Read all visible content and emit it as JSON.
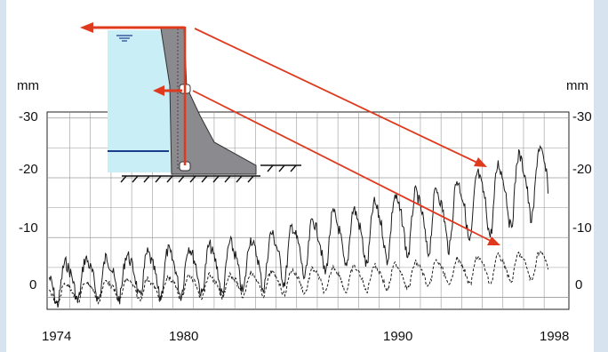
{
  "chart_data": {
    "type": "line",
    "title": "",
    "xlabel": "",
    "ylabel": "mm",
    "ylabel_right": "mm",
    "x_ticks": [
      "1974",
      "1980",
      "1990",
      "1998"
    ],
    "y_ticks": [
      "-30",
      "-20",
      "-10",
      "0"
    ],
    "xlim": [
      1973.9,
      1999.2
    ],
    "ylim": [
      2,
      -31
    ],
    "grid": true,
    "series": [
      {
        "style": "solid",
        "x": [
          1974,
          1975,
          1976,
          1977,
          1978,
          1979,
          1980,
          1981,
          1982,
          1983,
          1984,
          1985,
          1986,
          1987,
          1988,
          1989,
          1990,
          1991,
          1992,
          1993,
          1994,
          1995,
          1996,
          1997,
          1998
        ],
        "y": [
          -2,
          -3,
          -3.5,
          -3.5,
          -4,
          -4,
          -4.5,
          -5,
          -5,
          -5.5,
          -6,
          -7,
          -8,
          -9,
          -10,
          -10.5,
          -11.5,
          -12.5,
          -13,
          -13.5,
          -15,
          -16,
          -17.5,
          -19,
          -20
        ]
      },
      {
        "style": "dashed",
        "x": [
          1974,
          1975,
          1976,
          1977,
          1978,
          1979,
          1980,
          1981,
          1982,
          1983,
          1984,
          1985,
          1986,
          1987,
          1988,
          1989,
          1990,
          1991,
          1992,
          1993,
          1994,
          1995,
          1996,
          1997,
          1998
        ],
        "y": [
          -0.5,
          -1,
          -1.2,
          -1.3,
          -1.5,
          -1.5,
          -1.8,
          -2,
          -2,
          -2.2,
          -2.4,
          -2.6,
          -2.8,
          -3,
          -3.2,
          -3.3,
          -3.5,
          -3.7,
          -4,
          -4.2,
          -4.5,
          -4.8,
          -5,
          -5.3,
          -5.6
        ]
      }
    ],
    "inset": "dam cross-section schematic with red arrows"
  },
  "colors": {
    "accent": "#e03a1e",
    "water": "#c9eef5",
    "dam": "#8a8a8f",
    "grid": "#9a9a9a"
  }
}
